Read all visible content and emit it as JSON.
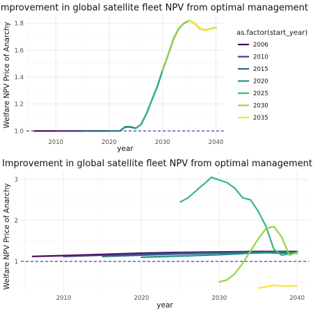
{
  "chart_data": [
    {
      "type": "line",
      "title": "Improvement in global satellite fleet NPV from optimal management",
      "xlabel": "year",
      "ylabel": "Welfare NPV Price of Anarchy",
      "xlim": [
        2004.5,
        2041.5
      ],
      "ylim": [
        0.96,
        1.86
      ],
      "xticks": [
        2010,
        2020,
        2030,
        2040
      ],
      "yticks": [
        1.0,
        1.2,
        1.4,
        1.6,
        1.8
      ],
      "ytick_labels": [
        "1.0",
        "1.2",
        "1.4",
        "1.6",
        "1.8"
      ],
      "reference_line": {
        "y": 1.0,
        "style": "dashed",
        "color": "#3a3ad6"
      },
      "grid": true,
      "legend": {
        "title": "as.factor(start_year)",
        "placement": "right",
        "entries": [
          "2006",
          "2010",
          "2015",
          "2020",
          "2025",
          "2030",
          "2035"
        ]
      },
      "series": [
        {
          "name": "2006",
          "color": "#440154",
          "x": [
            2006,
            2010,
            2015,
            2020,
            2022,
            2023,
            2024,
            2025,
            2026,
            2027,
            2028,
            2029,
            2030,
            2031,
            2032,
            2033,
            2034,
            2035,
            2036,
            2037,
            2038,
            2039,
            2040
          ],
          "y": [
            1.0,
            1.0,
            1.0,
            1.0,
            1.0,
            1.03,
            1.03,
            1.02,
            1.05,
            1.13,
            1.23,
            1.33,
            1.45,
            1.56,
            1.68,
            1.76,
            1.8,
            1.82,
            1.8,
            1.76,
            1.75,
            1.76,
            1.77
          ]
        },
        {
          "name": "2010",
          "color": "#443983",
          "x": [
            2010,
            2015,
            2020,
            2022,
            2023,
            2024,
            2025,
            2026,
            2027,
            2028,
            2029,
            2030,
            2031,
            2032,
            2033,
            2034,
            2035,
            2036,
            2037,
            2038,
            2039,
            2040
          ],
          "y": [
            1.0,
            1.0,
            1.0,
            1.0,
            1.03,
            1.03,
            1.02,
            1.05,
            1.13,
            1.23,
            1.33,
            1.45,
            1.56,
            1.68,
            1.76,
            1.8,
            1.82,
            1.8,
            1.76,
            1.75,
            1.76,
            1.77
          ]
        },
        {
          "name": "2015",
          "color": "#31688e",
          "x": [
            2015,
            2020,
            2022,
            2023,
            2024,
            2025,
            2026,
            2027,
            2028,
            2029,
            2030,
            2031,
            2032,
            2033,
            2034,
            2035,
            2036,
            2037,
            2038,
            2039,
            2040
          ],
          "y": [
            1.0,
            1.0,
            1.0,
            1.03,
            1.03,
            1.02,
            1.05,
            1.13,
            1.23,
            1.33,
            1.45,
            1.56,
            1.68,
            1.76,
            1.8,
            1.82,
            1.8,
            1.76,
            1.75,
            1.76,
            1.77
          ]
        },
        {
          "name": "2020",
          "color": "#21908d",
          "x": [
            2020,
            2022,
            2023,
            2024,
            2025,
            2026,
            2027,
            2028,
            2029,
            2030,
            2031,
            2032,
            2033,
            2034,
            2035,
            2036,
            2037,
            2038,
            2039,
            2040
          ],
          "y": [
            1.0,
            1.0,
            1.03,
            1.03,
            1.02,
            1.05,
            1.13,
            1.23,
            1.33,
            1.45,
            1.56,
            1.68,
            1.76,
            1.8,
            1.82,
            1.8,
            1.76,
            1.75,
            1.76,
            1.77
          ]
        },
        {
          "name": "2025",
          "color": "#35b779",
          "x": [
            2025,
            2026,
            2027,
            2028,
            2029,
            2030,
            2031,
            2032,
            2033,
            2034,
            2035,
            2036,
            2037,
            2038,
            2039,
            2040
          ],
          "y": [
            1.02,
            1.05,
            1.13,
            1.23,
            1.33,
            1.45,
            1.56,
            1.68,
            1.76,
            1.8,
            1.82,
            1.8,
            1.76,
            1.75,
            1.76,
            1.77
          ]
        },
        {
          "name": "2030",
          "color": "#8fd744",
          "x": [
            2030,
            2031,
            2032,
            2033,
            2034,
            2035,
            2036,
            2037,
            2038,
            2039,
            2040
          ],
          "y": [
            1.45,
            1.56,
            1.68,
            1.76,
            1.8,
            1.82,
            1.8,
            1.76,
            1.75,
            1.76,
            1.77
          ]
        },
        {
          "name": "2035",
          "color": "#fde725",
          "x": [
            2035,
            2036,
            2037,
            2038,
            2039,
            2040
          ],
          "y": [
            1.82,
            1.8,
            1.76,
            1.75,
            1.76,
            1.77
          ]
        }
      ]
    },
    {
      "type": "line",
      "title": "Improvement in global satellite fleet NPV from optimal management",
      "xlabel": "year",
      "ylabel": "Welfare NPV Price of Anarchy",
      "xlim": [
        2004.5,
        2041.5
      ],
      "ylim": [
        0.25,
        3.2
      ],
      "xticks": [
        2010,
        2020,
        2030,
        2040
      ],
      "yticks": [
        1,
        2,
        3
      ],
      "ytick_labels": [
        "1",
        "2",
        "3"
      ],
      "reference_line": {
        "y": 1.0,
        "style": "dashed",
        "color": "#3a3ad6"
      },
      "grid": true,
      "legend": null,
      "series": [
        {
          "name": "2006",
          "color": "#440154",
          "x": [
            2006,
            2010,
            2015,
            2020,
            2025,
            2030,
            2035,
            2040
          ],
          "y": [
            1.12,
            1.14,
            1.17,
            1.2,
            1.22,
            1.23,
            1.24,
            1.24
          ]
        },
        {
          "name": "2010",
          "color": "#443983",
          "x": [
            2010,
            2015,
            2020,
            2025,
            2030,
            2035,
            2040
          ],
          "y": [
            1.12,
            1.15,
            1.18,
            1.21,
            1.22,
            1.23,
            1.23
          ]
        },
        {
          "name": "2015",
          "color": "#31688e",
          "x": [
            2015,
            2020,
            2025,
            2030,
            2035,
            2040
          ],
          "y": [
            1.12,
            1.15,
            1.18,
            1.2,
            1.22,
            1.22
          ]
        },
        {
          "name": "2020",
          "color": "#21908d",
          "x": [
            2020,
            2025,
            2030,
            2034,
            2036,
            2038,
            2040
          ],
          "y": [
            1.1,
            1.13,
            1.16,
            1.2,
            1.21,
            1.2,
            1.2
          ]
        },
        {
          "name": "2025",
          "color": "#35b779",
          "x": [
            2025,
            2026,
            2027,
            2028,
            2029,
            2030,
            2031,
            2032,
            2033,
            2034,
            2035,
            2036,
            2037,
            2038,
            2039,
            2040
          ],
          "y": [
            2.45,
            2.55,
            2.72,
            2.88,
            3.05,
            2.98,
            2.92,
            2.78,
            2.55,
            2.5,
            2.22,
            1.85,
            1.3,
            1.15,
            1.18,
            1.2
          ]
        },
        {
          "name": "2030",
          "color": "#8fd744",
          "x": [
            2030,
            2031,
            2032,
            2033,
            2034,
            2035,
            2036,
            2037,
            2038,
            2039,
            2040
          ],
          "y": [
            0.5,
            0.55,
            0.7,
            0.95,
            1.25,
            1.55,
            1.8,
            1.85,
            1.6,
            1.15,
            1.22
          ]
        },
        {
          "name": "2035",
          "color": "#fde725",
          "x": [
            2035,
            2036,
            2037,
            2038,
            2039,
            2040
          ],
          "y": [
            0.35,
            0.38,
            0.42,
            0.4,
            0.4,
            0.41
          ]
        }
      ]
    }
  ]
}
